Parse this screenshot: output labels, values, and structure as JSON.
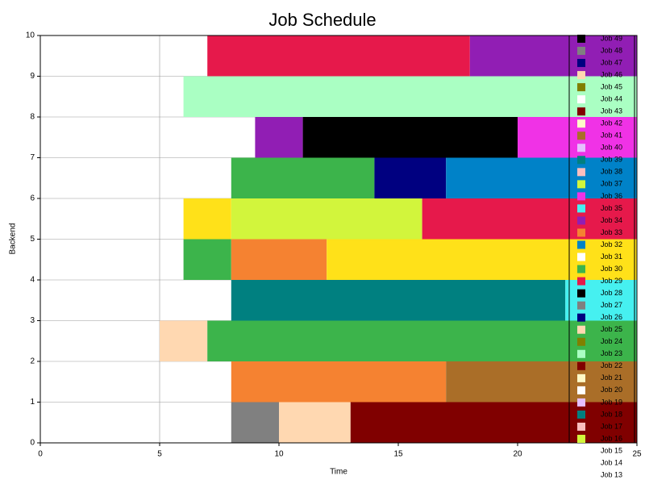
{
  "chart_data": {
    "type": "gantt",
    "title": "Job Schedule",
    "xlabel": "Time",
    "ylabel": "Backend",
    "xlim": [
      0,
      25
    ],
    "xticks": [
      0,
      5,
      10,
      15,
      20,
      25
    ],
    "ylim": [
      0,
      10
    ],
    "yticks": [
      0,
      1,
      2,
      3,
      4,
      5,
      6,
      7,
      8,
      9,
      10
    ],
    "grid": true,
    "bars": [
      {
        "backend": 0,
        "start": 8,
        "end": 10,
        "color": "#808080"
      },
      {
        "backend": 0,
        "start": 10,
        "end": 13,
        "color": "#ffd8b1"
      },
      {
        "backend": 0,
        "start": 13,
        "end": 25,
        "color": "#800000"
      },
      {
        "backend": 1,
        "start": 8,
        "end": 17,
        "color": "#f58231"
      },
      {
        "backend": 1,
        "start": 17,
        "end": 25,
        "color": "#aa6e28"
      },
      {
        "backend": 2,
        "start": 5,
        "end": 7,
        "color": "#ffd8b1"
      },
      {
        "backend": 2,
        "start": 7,
        "end": 25,
        "color": "#3cb44b"
      },
      {
        "backend": 3,
        "start": 8,
        "end": 22,
        "color": "#008080"
      },
      {
        "backend": 3,
        "start": 22,
        "end": 25,
        "color": "#46f0f0"
      },
      {
        "backend": 4,
        "start": 6,
        "end": 8,
        "color": "#3cb44b"
      },
      {
        "backend": 4,
        "start": 8,
        "end": 12,
        "color": "#f58231"
      },
      {
        "backend": 4,
        "start": 12,
        "end": 25,
        "color": "#ffe119"
      },
      {
        "backend": 5,
        "start": 6,
        "end": 8,
        "color": "#ffe119"
      },
      {
        "backend": 5,
        "start": 8,
        "end": 16,
        "color": "#d2f53c"
      },
      {
        "backend": 5,
        "start": 16,
        "end": 25,
        "color": "#e6194b"
      },
      {
        "backend": 6,
        "start": 8,
        "end": 14,
        "color": "#3cb44b"
      },
      {
        "backend": 6,
        "start": 14,
        "end": 17,
        "color": "#000080"
      },
      {
        "backend": 6,
        "start": 17,
        "end": 25,
        "color": "#0082c8"
      },
      {
        "backend": 7,
        "start": 9,
        "end": 11,
        "color": "#911eb4"
      },
      {
        "backend": 7,
        "start": 11,
        "end": 20,
        "color": "#000000"
      },
      {
        "backend": 7,
        "start": 20,
        "end": 25,
        "color": "#f032e6"
      },
      {
        "backend": 8,
        "start": 6,
        "end": 25,
        "color": "#aaffc3"
      },
      {
        "backend": 9,
        "start": 7,
        "end": 18,
        "color": "#e6194b"
      },
      {
        "backend": 9,
        "start": 18,
        "end": 25,
        "color": "#911eb4"
      }
    ],
    "legend": [
      {
        "name": "Job 49",
        "color": "#000000"
      },
      {
        "name": "Job 48",
        "color": "#808080"
      },
      {
        "name": "Job 47",
        "color": "#000080"
      },
      {
        "name": "Job 46",
        "color": "#ffd8b1"
      },
      {
        "name": "Job 45",
        "color": "#808000"
      },
      {
        "name": "Job 44",
        "color": "#ffffff"
      },
      {
        "name": "Job 43",
        "color": "#800000"
      },
      {
        "name": "Job 42",
        "color": "#fffac8"
      },
      {
        "name": "Job 41",
        "color": "#aa6e28"
      },
      {
        "name": "Job 40",
        "color": "#e6beff"
      },
      {
        "name": "Job 39",
        "color": "#008080"
      },
      {
        "name": "Job 38",
        "color": "#fabebe"
      },
      {
        "name": "Job 37",
        "color": "#d2f53c"
      },
      {
        "name": "Job 36",
        "color": "#f032e6"
      },
      {
        "name": "Job 35",
        "color": "#46f0f0"
      },
      {
        "name": "Job 34",
        "color": "#911eb4"
      },
      {
        "name": "Job 33",
        "color": "#f58231"
      },
      {
        "name": "Job 32",
        "color": "#0082c8"
      },
      {
        "name": "Job 31",
        "color": "#ffffff"
      },
      {
        "name": "Job 30",
        "color": "#3cb44b"
      },
      {
        "name": "Job 29",
        "color": "#e6194b"
      },
      {
        "name": "Job 28",
        "color": "#000000"
      },
      {
        "name": "Job 27",
        "color": "#808080"
      },
      {
        "name": "Job 26",
        "color": "#000080"
      },
      {
        "name": "Job 25",
        "color": "#ffd8b1"
      },
      {
        "name": "Job 24",
        "color": "#808000"
      },
      {
        "name": "Job 23",
        "color": "#aaffc3"
      },
      {
        "name": "Job 22",
        "color": "#800000"
      },
      {
        "name": "Job 21",
        "color": "#fffac8"
      },
      {
        "name": "Job 20",
        "color": "#ffffff"
      },
      {
        "name": "Job 19",
        "color": "#e6beff"
      },
      {
        "name": "Job 18",
        "color": "#008080"
      },
      {
        "name": "Job 17",
        "color": "#fabebe"
      },
      {
        "name": "Job 16",
        "color": "#d2f53c"
      },
      {
        "name": "Job 15",
        "color": "#ffffff"
      },
      {
        "name": "Job 14",
        "color": "#ffffff"
      },
      {
        "name": "Job 13",
        "color": "#ffffff"
      }
    ]
  }
}
